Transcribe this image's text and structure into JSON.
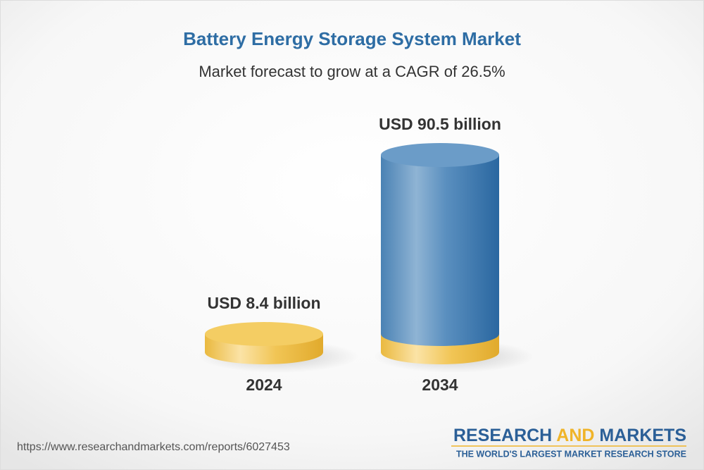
{
  "chart_data": {
    "type": "cylinder",
    "title": "Battery Energy Storage System Market",
    "subtitle": "Market forecast to grow at a CAGR of 26.5%",
    "categories": [
      "2024",
      "2034"
    ],
    "values": [
      8.4,
      90.5
    ],
    "value_labels": [
      "USD 8.4 billion",
      "USD 90.5 billion"
    ],
    "colors": [
      "#f1c14e",
      "#4c86b8"
    ]
  },
  "source_url": "https://www.researchandmarkets.com/reports/6027453",
  "brand": {
    "name": [
      "RESEARCH",
      "AND",
      "MARKETS"
    ],
    "tagline": "THE WORLD'S LARGEST MARKET RESEARCH STORE"
  }
}
